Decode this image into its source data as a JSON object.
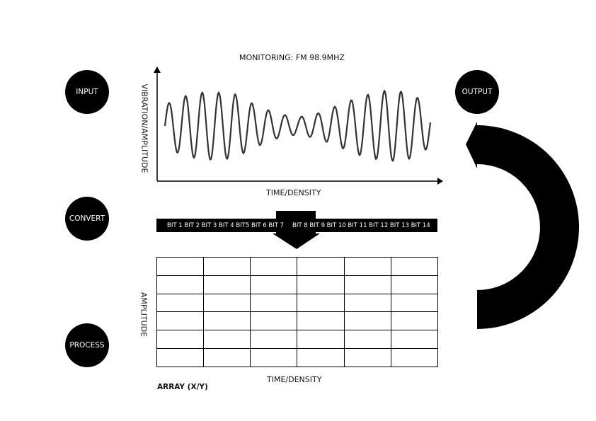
{
  "nodes": {
    "input": "INPUT",
    "output": "OUTPUT",
    "convert": "CONVERT",
    "process": "PROCESS"
  },
  "waveform": {
    "title": "MONITORING: FM 98.9MHZ",
    "y_label": "VIBRATION/AMPLITUDE",
    "x_label": "TIME/DENSITY"
  },
  "bits": {
    "left": "BIT 1 BIT 2 BIT 3 BIT 4 BIT5 BIT 6 BIT 7",
    "right": "BIT 8 BIT 9 BIT 10 BIT 11 BIT 12 BIT 13 BIT 14"
  },
  "array": {
    "y_label": "AMPLITUDE",
    "x_label": "TIME/DENSITY",
    "caption": "ARRAY (X/Y)",
    "rows": 6,
    "columns": 6
  }
}
